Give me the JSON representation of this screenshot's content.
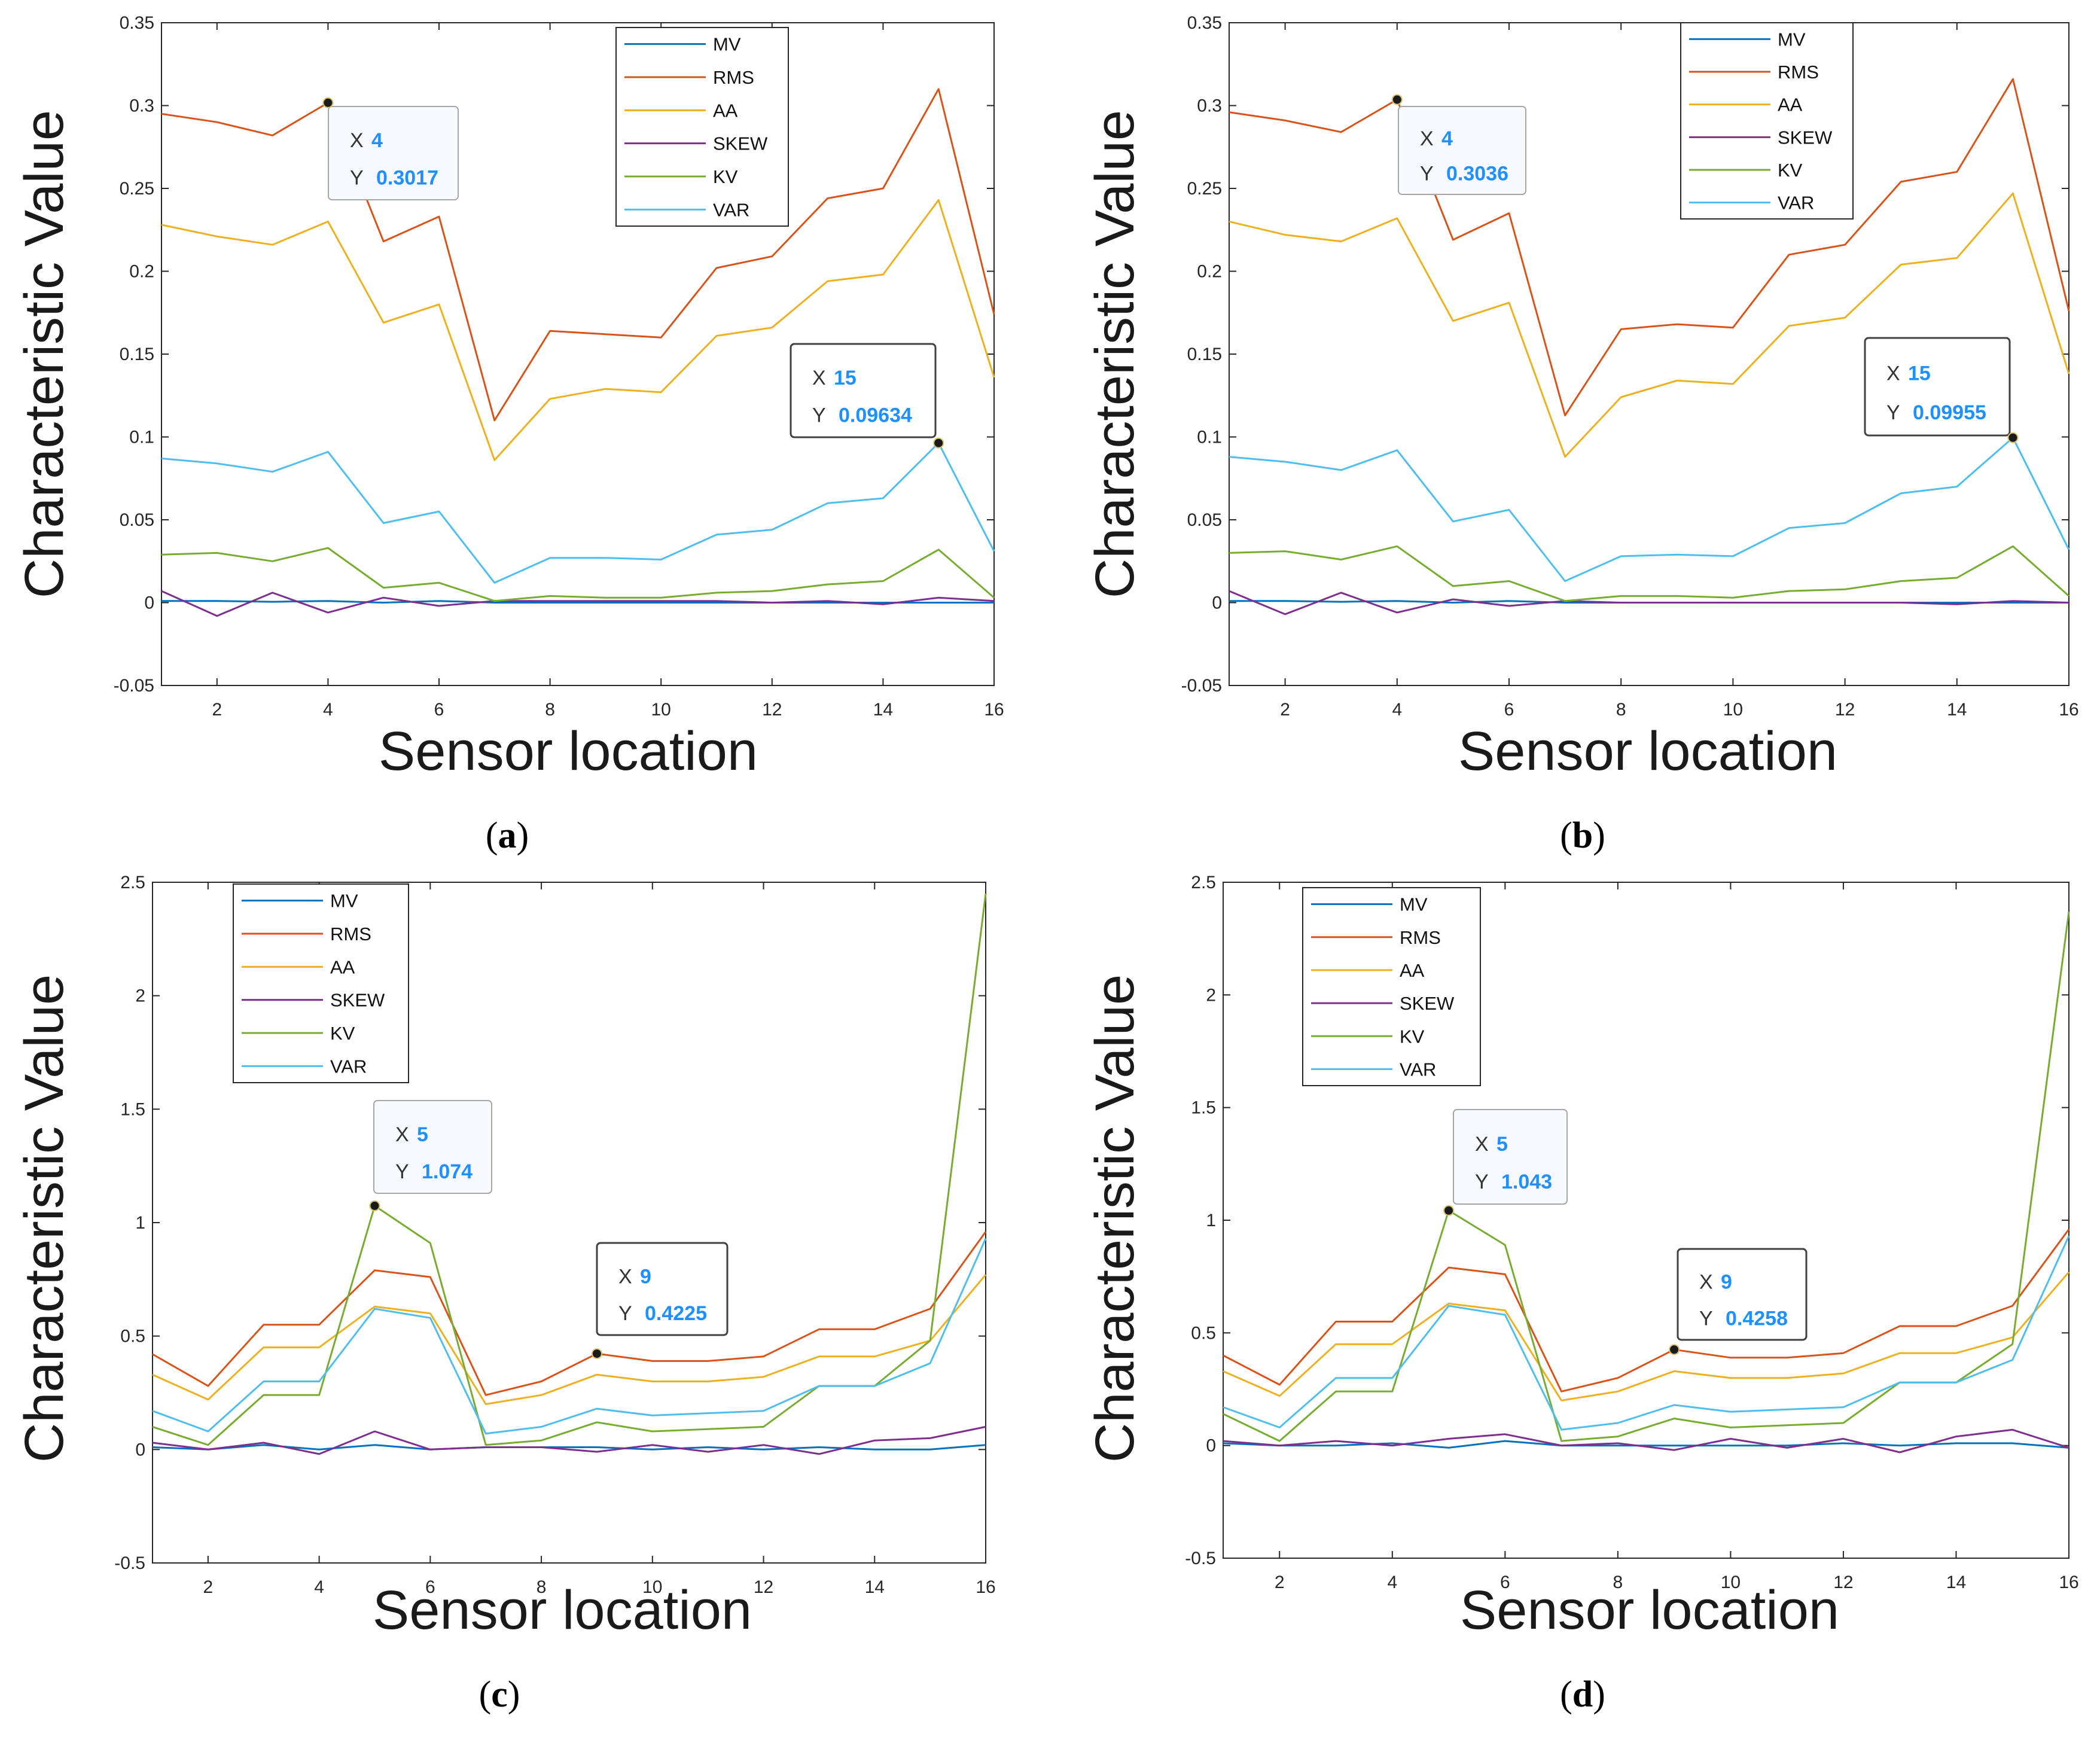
{
  "series_colors": {
    "MV": "#0072BD",
    "RMS": "#D95319",
    "AA": "#EDB120",
    "SKEW": "#7E2F8E",
    "KV": "#77AC30",
    "VAR": "#4DBEEE"
  },
  "datatip_value_color": "#1E90FF",
  "chart_data": [
    {
      "panel": "(a)",
      "panel_letter": "a",
      "type": "line",
      "xlabel": "Sensor location",
      "ylabel": "Characteristic Value",
      "xlim": [
        1,
        16
      ],
      "ylim": [
        -0.05,
        0.35
      ],
      "xticks": [
        2,
        4,
        6,
        8,
        10,
        12,
        14,
        16
      ],
      "xtick_labels": [
        "2",
        "4",
        "6",
        "8",
        "10",
        "12",
        "14",
        "16"
      ],
      "yticks": [
        -0.05,
        0,
        0.05,
        0.1,
        0.15,
        0.2,
        0.25,
        0.3,
        0.35
      ],
      "ytick_labels": [
        "-0.05",
        "0",
        "0.05",
        "0.1",
        "0.15",
        "0.2",
        "0.25",
        "0.3",
        "0.35"
      ],
      "legend_position": "top-right",
      "x": [
        1,
        2,
        3,
        4,
        5,
        6,
        7,
        8,
        9,
        10,
        11,
        12,
        13,
        14,
        15,
        16
      ],
      "series": [
        {
          "name": "MV",
          "values": [
            0.001,
            0.001,
            0.0005,
            0.001,
            0.0,
            0.001,
            0.0,
            0.0,
            0.0,
            0.0,
            0.0,
            0.0,
            0.0,
            0.0,
            0.0,
            0.0
          ]
        },
        {
          "name": "RMS",
          "values": [
            0.295,
            0.29,
            0.282,
            0.3017,
            0.218,
            0.233,
            0.11,
            0.164,
            0.162,
            0.16,
            0.202,
            0.209,
            0.244,
            0.25,
            0.31,
            0.174
          ]
        },
        {
          "name": "AA",
          "values": [
            0.228,
            0.221,
            0.216,
            0.23,
            0.169,
            0.18,
            0.086,
            0.123,
            0.129,
            0.127,
            0.161,
            0.166,
            0.194,
            0.198,
            0.243,
            0.136
          ]
        },
        {
          "name": "SKEW",
          "values": [
            0.007,
            -0.008,
            0.006,
            -0.006,
            0.003,
            -0.002,
            0.001,
            0.001,
            0.001,
            0.001,
            0.001,
            0.0,
            0.001,
            -0.001,
            0.003,
            0.001
          ]
        },
        {
          "name": "KV",
          "values": [
            0.029,
            0.03,
            0.025,
            0.033,
            0.009,
            0.012,
            0.001,
            0.004,
            0.003,
            0.003,
            0.006,
            0.007,
            0.011,
            0.013,
            0.032,
            0.003
          ]
        },
        {
          "name": "VAR",
          "values": [
            0.087,
            0.084,
            0.079,
            0.091,
            0.048,
            0.055,
            0.012,
            0.027,
            0.027,
            0.026,
            0.041,
            0.044,
            0.06,
            0.063,
            0.09634,
            0.031
          ]
        }
      ],
      "datatips": [
        {
          "series": "RMS",
          "x": 4,
          "y": 0.3017,
          "x_text": "4",
          "y_text": "0.3017",
          "placement": "lower-right",
          "style": "light"
        },
        {
          "series": "VAR",
          "x": 15,
          "y": 0.09634,
          "x_text": "15",
          "y_text": "0.09634",
          "placement": "upper-left",
          "style": "dark"
        }
      ]
    },
    {
      "panel": "(b)",
      "panel_letter": "b",
      "type": "line",
      "xlabel": "Sensor location",
      "ylabel": "Characteristic Value",
      "xlim": [
        1,
        16
      ],
      "ylim": [
        -0.05,
        0.35
      ],
      "xticks": [
        2,
        4,
        6,
        8,
        10,
        12,
        14,
        16
      ],
      "xtick_labels": [
        "2",
        "4",
        "6",
        "8",
        "10",
        "12",
        "14",
        "16"
      ],
      "yticks": [
        -0.05,
        0,
        0.05,
        0.1,
        0.15,
        0.2,
        0.25,
        0.3,
        0.35
      ],
      "ytick_labels": [
        "-0.05",
        "0",
        "0.05",
        "0.1",
        "0.15",
        "0.2",
        "0.25",
        "0.3",
        "0.35"
      ],
      "legend_position": "top-right",
      "x": [
        1,
        2,
        3,
        4,
        5,
        6,
        7,
        8,
        9,
        10,
        11,
        12,
        13,
        14,
        15,
        16
      ],
      "series": [
        {
          "name": "MV",
          "values": [
            0.001,
            0.001,
            0.0005,
            0.001,
            0.0,
            0.001,
            0.0,
            0.0,
            0.0,
            0.0,
            0.0,
            0.0,
            0.0,
            0.0,
            0.0,
            0.0
          ]
        },
        {
          "name": "RMS",
          "values": [
            0.296,
            0.291,
            0.284,
            0.3036,
            0.219,
            0.235,
            0.113,
            0.165,
            0.168,
            0.166,
            0.21,
            0.216,
            0.254,
            0.26,
            0.316,
            0.176
          ]
        },
        {
          "name": "AA",
          "values": [
            0.23,
            0.222,
            0.218,
            0.232,
            0.17,
            0.181,
            0.088,
            0.124,
            0.134,
            0.132,
            0.167,
            0.172,
            0.204,
            0.208,
            0.247,
            0.138
          ]
        },
        {
          "name": "SKEW",
          "values": [
            0.007,
            -0.007,
            0.006,
            -0.006,
            0.002,
            -0.002,
            0.001,
            0.0,
            0.0,
            0.0,
            0.0,
            0.0,
            0.0,
            -0.001,
            0.001,
            0.0
          ]
        },
        {
          "name": "KV",
          "values": [
            0.03,
            0.031,
            0.026,
            0.034,
            0.01,
            0.013,
            0.001,
            0.004,
            0.004,
            0.003,
            0.007,
            0.008,
            0.013,
            0.015,
            0.034,
            0.004
          ]
        },
        {
          "name": "VAR",
          "values": [
            0.088,
            0.085,
            0.08,
            0.092,
            0.049,
            0.056,
            0.013,
            0.028,
            0.029,
            0.028,
            0.045,
            0.048,
            0.066,
            0.07,
            0.09955,
            0.032
          ]
        }
      ],
      "datatips": [
        {
          "series": "RMS",
          "x": 4,
          "y": 0.3036,
          "x_text": "4",
          "y_text": "0.3036",
          "placement": "lower-right",
          "style": "light"
        },
        {
          "series": "VAR",
          "x": 15,
          "y": 0.09955,
          "x_text": "15",
          "y_text": "0.09955",
          "placement": "upper-left",
          "style": "dark"
        }
      ]
    },
    {
      "panel": "(c)",
      "panel_letter": "c",
      "type": "line",
      "xlabel": "Sensor location",
      "ylabel": "Characteristic Value",
      "xlim": [
        1,
        16
      ],
      "ylim": [
        -0.5,
        2.5
      ],
      "xticks": [
        2,
        4,
        6,
        8,
        10,
        12,
        14,
        16
      ],
      "xtick_labels": [
        "2",
        "4",
        "6",
        "8",
        "10",
        "12",
        "14",
        "16"
      ],
      "yticks": [
        -0.5,
        0,
        0.5,
        1,
        1.5,
        2,
        2.5
      ],
      "ytick_labels": [
        "-0.5",
        "0",
        "0.5",
        "1",
        "1.5",
        "2",
        "2.5"
      ],
      "legend_position": "top-left",
      "x": [
        1,
        2,
        3,
        4,
        5,
        6,
        7,
        8,
        9,
        10,
        11,
        12,
        13,
        14,
        15,
        16
      ],
      "series": [
        {
          "name": "MV",
          "values": [
            0.01,
            0.0,
            0.02,
            0.0,
            0.02,
            0.0,
            0.01,
            0.01,
            0.01,
            0.0,
            0.01,
            0.0,
            0.01,
            0.0,
            0.0,
            0.02
          ]
        },
        {
          "name": "RMS",
          "values": [
            0.42,
            0.28,
            0.55,
            0.55,
            0.79,
            0.76,
            0.24,
            0.3,
            0.4225,
            0.39,
            0.39,
            0.41,
            0.53,
            0.53,
            0.62,
            0.96
          ]
        },
        {
          "name": "AA",
          "values": [
            0.33,
            0.22,
            0.45,
            0.45,
            0.63,
            0.6,
            0.2,
            0.24,
            0.33,
            0.3,
            0.3,
            0.32,
            0.41,
            0.41,
            0.48,
            0.77
          ]
        },
        {
          "name": "SKEW",
          "values": [
            0.03,
            0.0,
            0.03,
            -0.02,
            0.08,
            0.0,
            0.01,
            0.01,
            -0.01,
            0.02,
            -0.01,
            0.02,
            -0.02,
            0.04,
            0.05,
            0.1
          ]
        },
        {
          "name": "KV",
          "values": [
            0.1,
            0.02,
            0.24,
            0.24,
            1.074,
            0.91,
            0.02,
            0.04,
            0.12,
            0.08,
            0.09,
            0.1,
            0.28,
            0.28,
            0.48,
            2.45
          ]
        },
        {
          "name": "VAR",
          "values": [
            0.17,
            0.08,
            0.3,
            0.3,
            0.62,
            0.58,
            0.07,
            0.1,
            0.18,
            0.15,
            0.16,
            0.17,
            0.28,
            0.28,
            0.38,
            0.93
          ]
        }
      ],
      "datatips": [
        {
          "series": "KV",
          "x": 5,
          "y": 1.074,
          "x_text": "5",
          "y_text": "1.074",
          "placement": "upper-right",
          "style": "light"
        },
        {
          "series": "RMS",
          "x": 9,
          "y": 0.4225,
          "x_text": "9",
          "y_text": "0.4225",
          "placement": "upper-right",
          "style": "dark"
        }
      ]
    },
    {
      "panel": "(d)",
      "panel_letter": "d",
      "type": "line",
      "xlabel": "Sensor location",
      "ylabel": "Characteristic Value",
      "xlim": [
        1,
        16
      ],
      "ylim": [
        -0.5,
        2.5
      ],
      "xticks": [
        2,
        4,
        6,
        8,
        10,
        12,
        14,
        16
      ],
      "xtick_labels": [
        "2",
        "4",
        "6",
        "8",
        "10",
        "12",
        "14",
        "16"
      ],
      "yticks": [
        -0.5,
        0,
        0.5,
        1,
        1.5,
        2,
        2.5
      ],
      "ytick_labels": [
        "-0.5",
        "0",
        "0.5",
        "1",
        "1.5",
        "2",
        "2.5"
      ],
      "legend_position": "top-left",
      "x": [
        1,
        2,
        3,
        4,
        5,
        6,
        7,
        8,
        9,
        10,
        11,
        12,
        13,
        14,
        15,
        16
      ],
      "series": [
        {
          "name": "MV",
          "values": [
            0.01,
            0.0,
            0.0,
            0.01,
            -0.01,
            0.02,
            0.0,
            0.0,
            0.0,
            0.0,
            0.0,
            0.01,
            0.0,
            0.01,
            0.01,
            -0.01
          ]
        },
        {
          "name": "RMS",
          "values": [
            0.4,
            0.27,
            0.55,
            0.55,
            0.79,
            0.76,
            0.24,
            0.3,
            0.4258,
            0.39,
            0.39,
            0.41,
            0.53,
            0.53,
            0.62,
            0.96
          ]
        },
        {
          "name": "AA",
          "values": [
            0.33,
            0.22,
            0.45,
            0.45,
            0.63,
            0.6,
            0.2,
            0.24,
            0.33,
            0.3,
            0.3,
            0.32,
            0.41,
            0.41,
            0.48,
            0.77
          ]
        },
        {
          "name": "SKEW",
          "values": [
            0.02,
            0.0,
            0.02,
            0.0,
            0.03,
            0.05,
            0.0,
            0.01,
            -0.02,
            0.03,
            -0.01,
            0.03,
            -0.03,
            0.04,
            0.07,
            -0.01
          ]
        },
        {
          "name": "KV",
          "values": [
            0.14,
            0.02,
            0.24,
            0.24,
            1.043,
            0.89,
            0.02,
            0.04,
            0.12,
            0.08,
            0.09,
            0.1,
            0.28,
            0.28,
            0.45,
            2.37
          ]
        },
        {
          "name": "VAR",
          "values": [
            0.17,
            0.08,
            0.3,
            0.3,
            0.62,
            0.58,
            0.07,
            0.1,
            0.18,
            0.15,
            0.16,
            0.17,
            0.28,
            0.28,
            0.38,
            0.93
          ]
        }
      ],
      "datatips": [
        {
          "series": "KV",
          "x": 5,
          "y": 1.043,
          "x_text": "5",
          "y_text": "1.043",
          "placement": "upper-right",
          "style": "light"
        },
        {
          "series": "RMS",
          "x": 9,
          "y": 0.4258,
          "x_text": "9",
          "y_text": "0.4258",
          "placement": "upper-right",
          "style": "dark"
        }
      ]
    }
  ],
  "legend_labels": [
    "MV",
    "RMS",
    "AA",
    "SKEW",
    "KV",
    "VAR"
  ],
  "datatip_keys": {
    "x": "X",
    "y": "Y"
  }
}
